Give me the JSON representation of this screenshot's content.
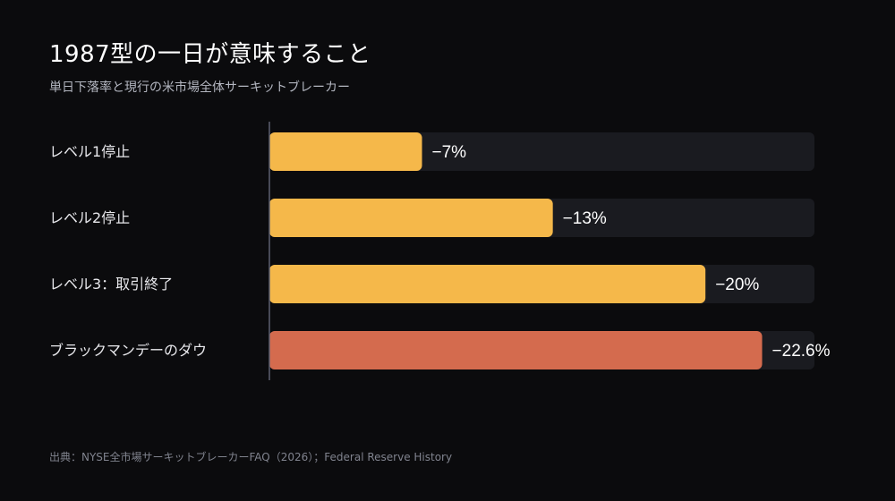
{
  "header": {
    "title": "1987型の一日が意味すること",
    "subtitle": "単日下落率と現行の米市場全体サーキットブレーカー"
  },
  "footer": {
    "source": "出典：NYSE全市場サーキットブレーカーFAQ（2026）；Federal Reserve History"
  },
  "colors": {
    "background": "#0b0b0d",
    "track": "#1a1b20",
    "threshold_bar": "#f5b84a",
    "event_bar": "#d46b4e",
    "axis_line": "#5d6070"
  },
  "chart_data": {
    "type": "bar",
    "orientation": "horizontal",
    "categories": [
      "レベル1停止",
      "レベル2停止",
      "レベル3：取引終了",
      "ブラックマンデーのダウ"
    ],
    "values": [
      -7,
      -13,
      -20,
      -22.6
    ],
    "value_labels": [
      "−7%",
      "−13%",
      "−20%",
      "−22.6%"
    ],
    "bar_colors": [
      "#f5b84a",
      "#f5b84a",
      "#f5b84a",
      "#d46b4e"
    ],
    "xlim": [
      0,
      -25
    ],
    "grid": false,
    "legend": "none"
  }
}
